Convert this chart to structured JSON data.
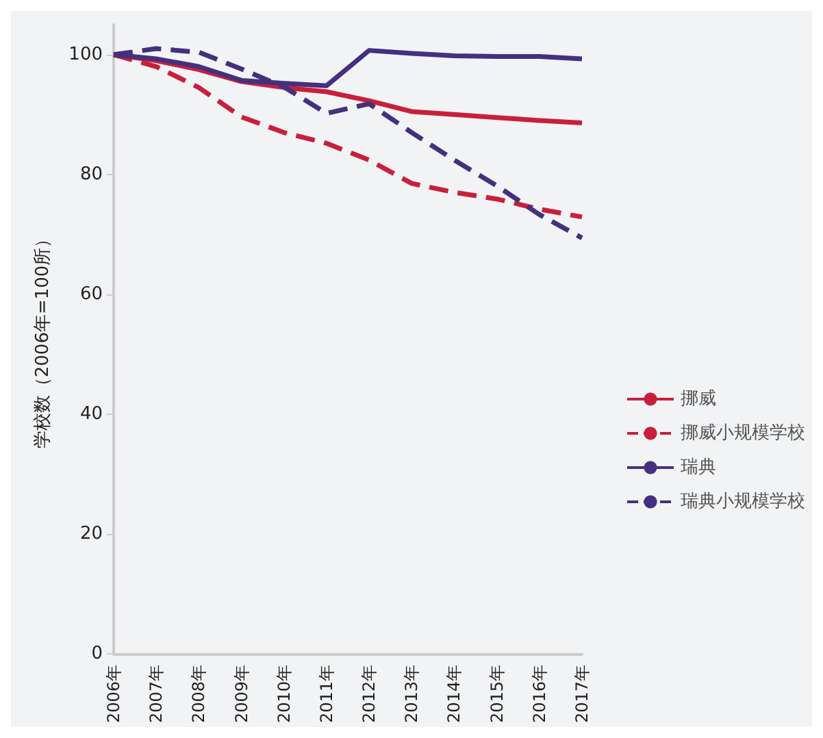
{
  "chart_data": {
    "type": "line",
    "ylabel": "学校数（2006年=100所）",
    "categories": [
      "2006年",
      "2007年",
      "2008年",
      "2009年",
      "2010年",
      "2011年",
      "2012年",
      "2013年",
      "2014年",
      "2015年",
      "2016年",
      "2017年"
    ],
    "series": [
      {
        "name": "挪威",
        "color": "#c8203a",
        "line_style": "solid",
        "values": [
          100,
          99,
          97.5,
          95.5,
          94.5,
          93.8,
          92.3,
          90.5,
          90,
          89.5,
          89,
          88.6
        ]
      },
      {
        "name": "挪威小规模学校",
        "color": "#c8203a",
        "line_style": "dashed",
        "values": [
          100,
          98,
          94.5,
          89.6,
          87,
          85.2,
          82.4,
          78.5,
          77,
          75.9,
          74.2,
          72.9
        ]
      },
      {
        "name": "瑞典",
        "color": "#45307f",
        "line_style": "solid",
        "values": [
          100,
          99.3,
          98,
          95.7,
          95.2,
          94.8,
          100.7,
          100.2,
          99.8,
          99.7,
          99.7,
          99.3
        ]
      },
      {
        "name": "瑞典小规模学校",
        "color": "#45307f",
        "line_style": "dashed",
        "values": [
          100,
          101,
          100.4,
          97.6,
          94.6,
          90.2,
          91.8,
          87,
          82.4,
          78.1,
          73.3,
          69.4
        ]
      }
    ],
    "ylim": [
      0,
      105
    ],
    "yticks": [
      0,
      20,
      40,
      60,
      80,
      100
    ],
    "grid": false,
    "legend": "right",
    "marker": "none"
  }
}
